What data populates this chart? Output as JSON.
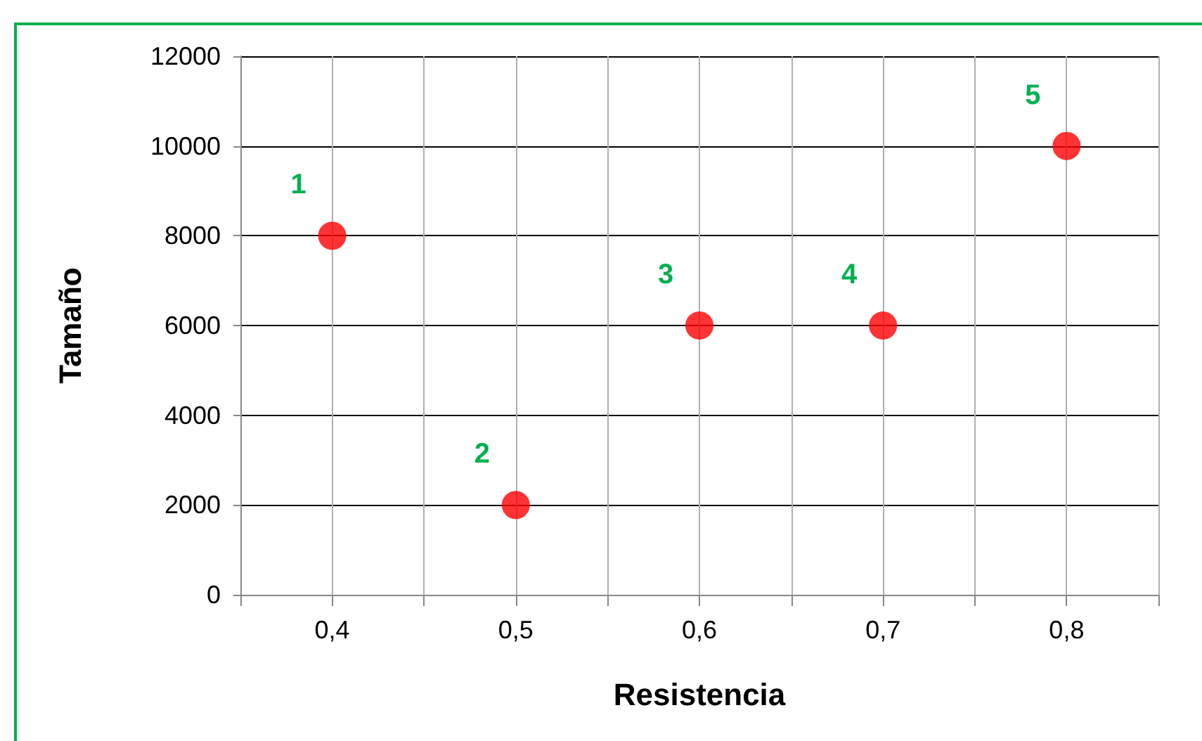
{
  "chart_data": {
    "type": "scatter",
    "xlabel": "Resistencia",
    "ylabel": "Tamaño",
    "x": [
      0.4,
      0.5,
      0.6,
      0.7,
      0.8
    ],
    "series": [
      {
        "color": "#ff0000",
        "values": [
          8000,
          2000,
          6000,
          6000,
          10000
        ]
      }
    ],
    "xlim": [
      0.35,
      0.85
    ],
    "xticks": [
      {
        "value": 0.35,
        "label": null
      },
      {
        "value": 0.4,
        "label": "0,4"
      },
      {
        "value": 0.45,
        "label": null
      },
      {
        "value": 0.5,
        "label": "0,5"
      },
      {
        "value": 0.55,
        "label": null
      },
      {
        "value": 0.6,
        "label": "0,6"
      },
      {
        "value": 0.65,
        "label": null
      },
      {
        "value": 0.7,
        "label": "0,7"
      },
      {
        "value": 0.75,
        "label": null
      },
      {
        "value": 0.8,
        "label": "0,8"
      },
      {
        "value": 0.85,
        "label": null
      }
    ],
    "ylim": [
      0,
      12000
    ],
    "yticks": [
      0,
      2000,
      4000,
      6000,
      8000,
      10000,
      12000
    ],
    "grid": true,
    "marker": "circle",
    "annotations": [
      {
        "text": "1",
        "x": 0.4,
        "y": 8000
      },
      {
        "text": "2",
        "x": 0.5,
        "y": 2000
      },
      {
        "text": "3",
        "x": 0.6,
        "y": 6000
      },
      {
        "text": "4",
        "x": 0.7,
        "y": 6000
      },
      {
        "text": "5",
        "x": 0.8,
        "y": 10000
      }
    ]
  }
}
